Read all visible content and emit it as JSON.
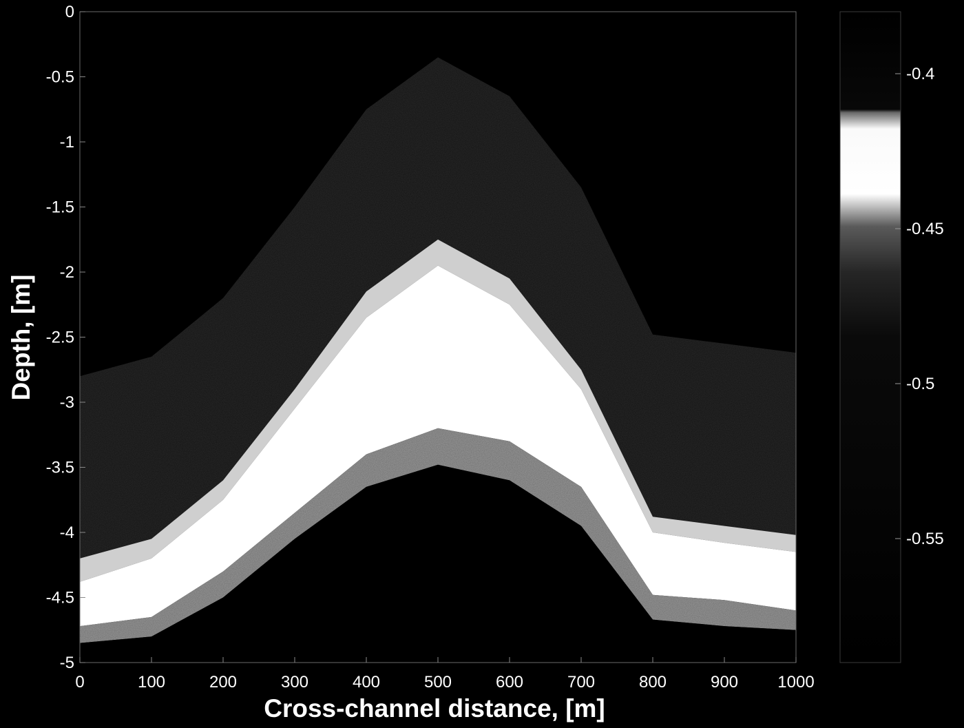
{
  "chart_data": {
    "type": "heatmap",
    "title": "",
    "xlabel": "Cross-channel distance, [m]",
    "ylabel": "Depth, [m]",
    "xlim": [
      0,
      1000
    ],
    "ylim": [
      -5,
      0
    ],
    "x_ticks": [
      "0",
      "100",
      "200",
      "300",
      "400",
      "500",
      "600",
      "700",
      "800",
      "900",
      "1000"
    ],
    "y_ticks": [
      "0",
      "-0.5",
      "-1",
      "-1.5",
      "-2",
      "-2.5",
      "-3",
      "-3.5",
      "-4",
      "-4.5",
      "-5"
    ],
    "grid": false,
    "colormap": "gray",
    "colorbar": {
      "ticks": [
        "-0.4",
        "-0.45",
        "-0.5",
        "-0.55"
      ],
      "tick_values": [
        -0.4,
        -0.45,
        -0.5,
        -0.55
      ],
      "range": [
        -0.59,
        -0.38
      ]
    },
    "bathymetry": {
      "x": [
        0,
        100,
        200,
        300,
        400,
        500,
        600,
        700,
        800,
        900,
        1000
      ],
      "depth": [
        -4.85,
        -4.8,
        -4.5,
        -4.05,
        -3.65,
        -3.48,
        -3.6,
        -3.95,
        -4.67,
        -4.72,
        -4.75
      ]
    },
    "contours": [
      {
        "level": -0.44,
        "x": [
          0,
          100,
          200,
          300,
          400,
          500,
          600,
          700,
          800,
          900,
          1000
        ],
        "depth": [
          -4.2,
          -4.05,
          -3.6,
          -2.9,
          -2.15,
          -1.75,
          -2.05,
          -2.75,
          -3.88,
          -3.95,
          -4.02
        ]
      },
      {
        "level": -0.46,
        "x": [
          0,
          100,
          200,
          300,
          400,
          500,
          600,
          700,
          800,
          900,
          1000
        ],
        "depth": [
          -4.38,
          -4.2,
          -3.75,
          -3.05,
          -2.35,
          -1.95,
          -2.25,
          -2.9,
          -4.0,
          -4.08,
          -4.15
        ]
      },
      {
        "level": -0.5,
        "x": [
          0,
          100,
          200,
          300,
          400,
          500,
          600,
          700,
          800,
          900,
          1000
        ],
        "depth": [
          -4.72,
          -4.65,
          -4.3,
          -3.85,
          -3.4,
          -3.2,
          -3.3,
          -3.65,
          -4.48,
          -4.52,
          -4.6
        ]
      }
    ]
  }
}
